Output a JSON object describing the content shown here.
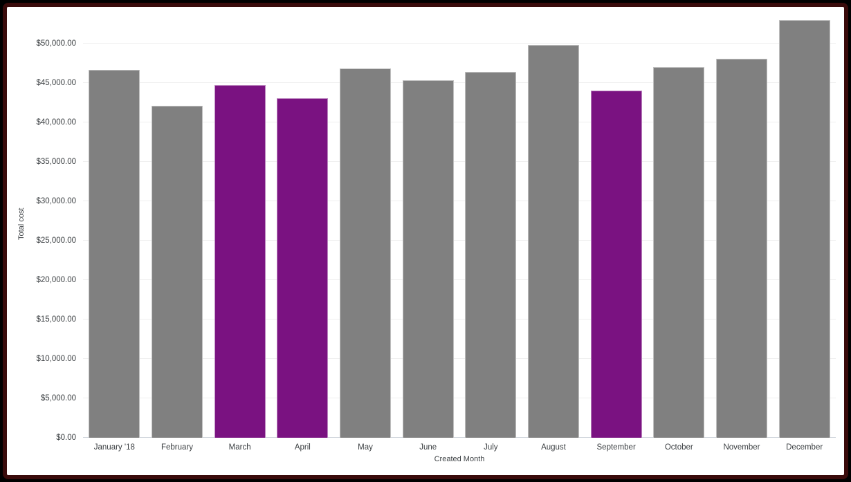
{
  "frame": {
    "outer_color": "#000000",
    "inner_color": "#3a0b0b",
    "background": "#ffffff"
  },
  "chart_data": {
    "type": "bar",
    "title": "",
    "xlabel": "Created Month",
    "ylabel": "Total cost",
    "categories": [
      "January '18",
      "February",
      "March",
      "April",
      "May",
      "June",
      "July",
      "August",
      "September",
      "October",
      "November",
      "December"
    ],
    "values": [
      46650,
      42100,
      44750,
      43100,
      46850,
      45350,
      46400,
      49850,
      44050,
      47050,
      48050,
      52950
    ],
    "colors": [
      "#808080",
      "#808080",
      "#7a1281",
      "#7a1281",
      "#808080",
      "#808080",
      "#808080",
      "#808080",
      "#7a1281",
      "#808080",
      "#808080",
      "#808080"
    ],
    "default_color": "#808080",
    "highlight_color": "#7a1281",
    "highlighted_categories": [
      "March",
      "April",
      "September"
    ],
    "ylim": [
      0,
      54200
    ],
    "grid": true,
    "legend": "none",
    "yticks": [
      {
        "value": 0,
        "label": "$0.00"
      },
      {
        "value": 5000,
        "label": "$5,000.00"
      },
      {
        "value": 10000,
        "label": "$10,000.00"
      },
      {
        "value": 15000,
        "label": "$15,000.00"
      },
      {
        "value": 20000,
        "label": "$20,000.00"
      },
      {
        "value": 25000,
        "label": "$25,000.00"
      },
      {
        "value": 30000,
        "label": "$30,000.00"
      },
      {
        "value": 35000,
        "label": "$35,000.00"
      },
      {
        "value": 40000,
        "label": "$40,000.00"
      },
      {
        "value": 45000,
        "label": "$45,000.00"
      },
      {
        "value": 50000,
        "label": "$50,000.00"
      }
    ]
  }
}
